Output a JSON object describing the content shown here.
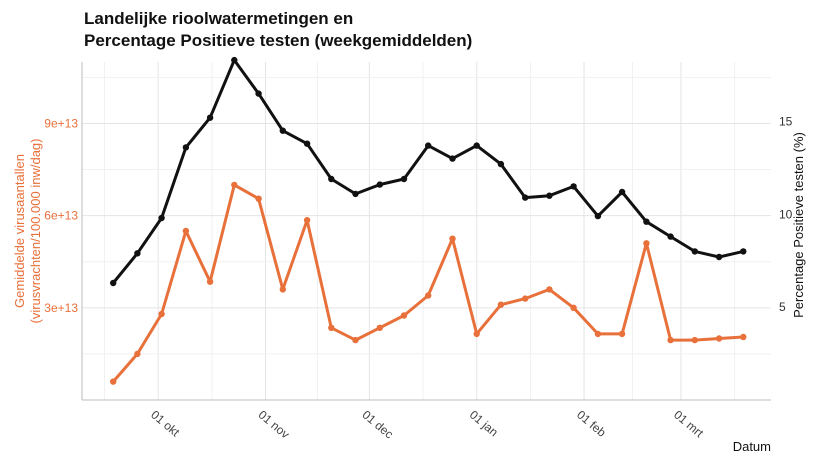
{
  "chart_data": {
    "type": "line",
    "title": [
      "Landelijke rioolwatermetingen en",
      "Percentage Positieve testen (weekgemiddelden)"
    ],
    "xlabel": "Datum",
    "ylabel_left": [
      "Gemiddelde virusaantallen",
      "(virusvrachten/100.000 inw/dag)"
    ],
    "ylabel_right": "Percentage Positieve testen (%)",
    "xlim": [
      "2020-09-09",
      "2021-03-27"
    ],
    "ylim_left": [
      0,
      110000000000000
    ],
    "ylim_right": [
      0,
      18.2
    ],
    "x_ticks": [
      {
        "date": "2020-10-01",
        "label": "01 okt"
      },
      {
        "date": "2020-11-01",
        "label": "01 nov"
      },
      {
        "date": "2020-12-01",
        "label": "01 dec"
      },
      {
        "date": "2021-01-01",
        "label": "01 jan"
      },
      {
        "date": "2021-02-01",
        "label": "01 feb"
      },
      {
        "date": "2021-03-01",
        "label": "01 mrt"
      }
    ],
    "y_ticks_left": [
      {
        "value": 30000000000000,
        "label": "3e+13"
      },
      {
        "value": 60000000000000,
        "label": "6e+13"
      },
      {
        "value": 90000000000000,
        "label": "9e+13"
      }
    ],
    "y_ticks_right": [
      {
        "value": 5,
        "label": "5"
      },
      {
        "value": 10,
        "label": "10"
      },
      {
        "value": 15,
        "label": "15"
      }
    ],
    "grid": true,
    "legend": "none",
    "dates": [
      "2020-09-18",
      "2020-09-25",
      "2020-10-02",
      "2020-10-09",
      "2020-10-16",
      "2020-10-23",
      "2020-10-30",
      "2020-11-06",
      "2020-11-13",
      "2020-11-20",
      "2020-11-27",
      "2020-12-04",
      "2020-12-11",
      "2020-12-18",
      "2020-12-25",
      "2021-01-01",
      "2021-01-08",
      "2021-01-15",
      "2021-01-22",
      "2021-01-29",
      "2021-02-05",
      "2021-02-12",
      "2021-02-19",
      "2021-02-26",
      "2021-03-05",
      "2021-03-12",
      "2021-03-19"
    ],
    "series": [
      {
        "axis": "left",
        "color": "#e8703a",
        "values": [
          6000000000000,
          15000000000000,
          28000000000000,
          55000000000000,
          38500000000000,
          70000000000000,
          65500000000000,
          36000000000000,
          58500000000000,
          23500000000000,
          19500000000000,
          23500000000000,
          27500000000000,
          34000000000000,
          52500000000000,
          21500000000000,
          31000000000000,
          33000000000000,
          36000000000000,
          30000000000000,
          21500000000000,
          21500000000000,
          51000000000000,
          19500000000000,
          19500000000000,
          20000000000000,
          20500000000000
        ]
      },
      {
        "axis": "right",
        "color": "#111111",
        "values": [
          6.3,
          7.9,
          9.8,
          13.6,
          15.2,
          18.3,
          16.5,
          14.5,
          13.8,
          11.9,
          11.1,
          11.6,
          11.9,
          13.7,
          13.0,
          13.7,
          12.7,
          10.9,
          11.0,
          11.5,
          9.9,
          11.2,
          9.6,
          8.8,
          8.0,
          7.7,
          8.0
        ]
      }
    ]
  }
}
